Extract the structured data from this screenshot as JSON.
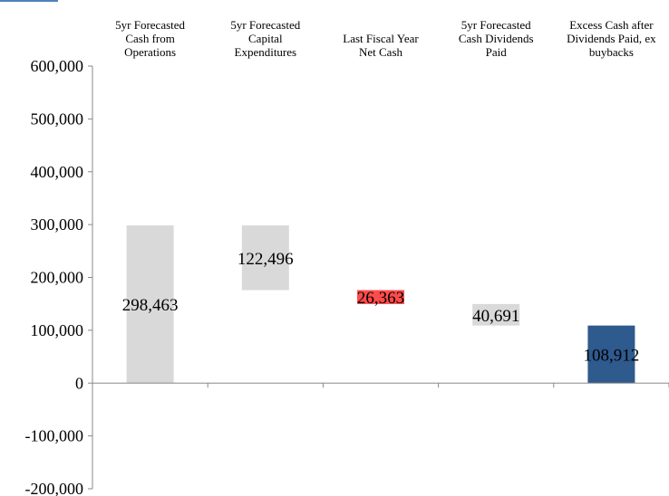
{
  "chart_data": {
    "type": "bar",
    "subtype": "waterfall",
    "categories": [
      [
        "5yr Forecasted",
        "Cash from",
        "Operations"
      ],
      [
        "5yr Forecasted",
        "Capital",
        "Expenditures"
      ],
      [
        "Last Fiscal Year",
        "Net Cash"
      ],
      [
        "5yr Forecasted",
        "Cash Dividends",
        "Paid"
      ],
      [
        "Excess Cash after",
        "Dividends Paid, ex",
        "buybacks"
      ]
    ],
    "bars": [
      {
        "bottom": 0,
        "top": 298463,
        "label": "298,463",
        "color": "#d9d9d9"
      },
      {
        "bottom": 175967,
        "top": 298463,
        "label": "122,496",
        "color": "#d9d9d9"
      },
      {
        "bottom": 149604,
        "top": 175967,
        "label": "26,363",
        "color": "#ff4b4b"
      },
      {
        "bottom": 108912,
        "top": 149604,
        "label": "40,691",
        "color": "#d9d9d9"
      },
      {
        "bottom": 0,
        "top": 108912,
        "label": "108,912",
        "color": "#2e5a8e"
      }
    ],
    "yticks": [
      "600,000",
      "500,000",
      "400,000",
      "300,000",
      "200,000",
      "100,000",
      "0",
      "-100,000",
      "-200,000"
    ],
    "ylim": [
      -200000,
      600000
    ],
    "grid": false,
    "legend": "none"
  }
}
